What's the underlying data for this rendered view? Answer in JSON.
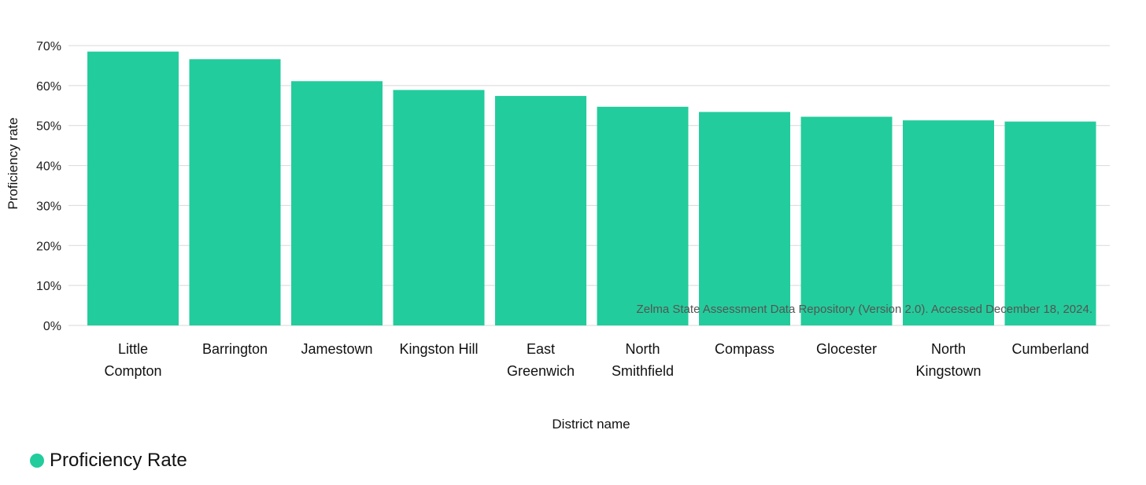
{
  "chart_data": {
    "type": "bar",
    "xlabel": "District name",
    "ylabel": "Proficiency rate",
    "ylim": [
      0,
      70
    ],
    "yticks": [
      0,
      10,
      20,
      30,
      40,
      50,
      60,
      70
    ],
    "ytick_suffix": "%",
    "grid": true,
    "categories": [
      [
        "Little",
        "Compton"
      ],
      [
        "Barrington"
      ],
      [
        "Jamestown"
      ],
      [
        "Kingston Hill"
      ],
      [
        "East",
        "Greenwich"
      ],
      [
        "North",
        "Smithfield"
      ],
      [
        "Compass"
      ],
      [
        "Glocester"
      ],
      [
        "North",
        "Kingstown"
      ],
      [
        "Cumberland"
      ]
    ],
    "series": [
      {
        "name": "Proficiency Rate",
        "color": "#23cc9c",
        "values": [
          68.5,
          66.6,
          61.1,
          58.9,
          57.4,
          54.7,
          53.4,
          52.2,
          51.3,
          51.0
        ]
      }
    ],
    "source_note": "Zelma State Assessment Data Repository (Version 2.0). Accessed December 18, 2024.",
    "legend": {
      "position": "bottom-left",
      "label": "Proficiency Rate",
      "color": "#23cc9c"
    }
  }
}
